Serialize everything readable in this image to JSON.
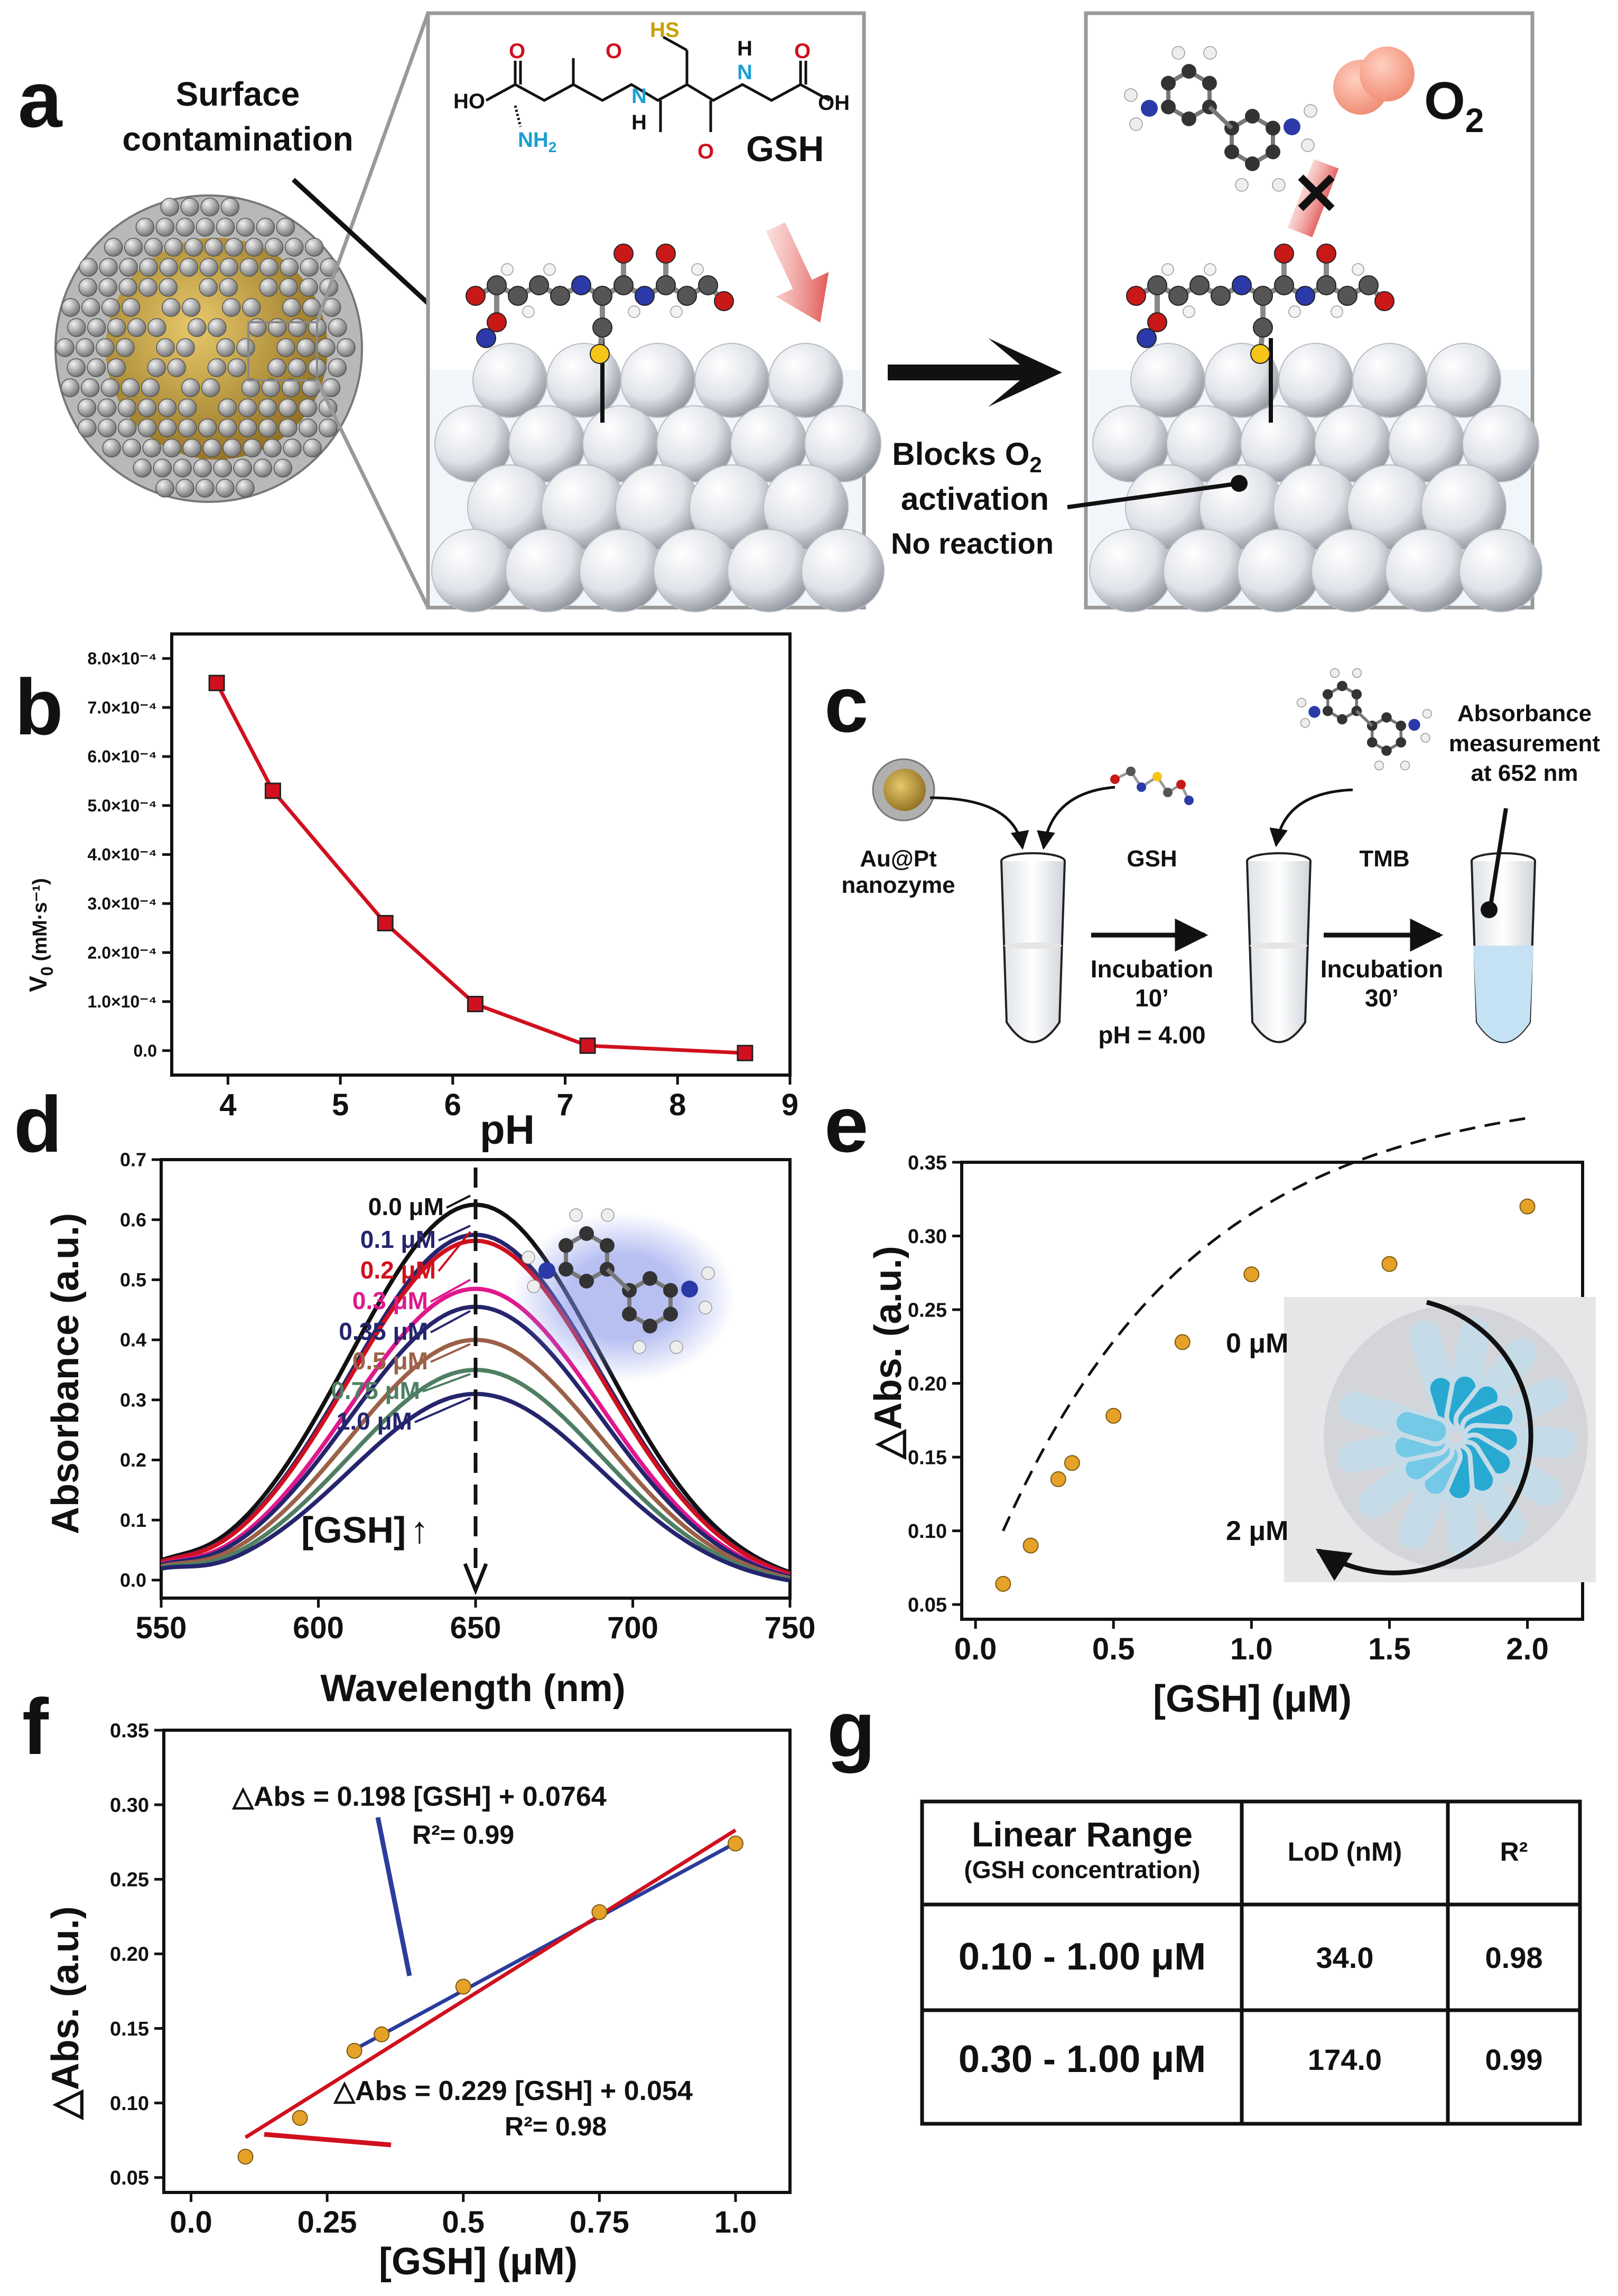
{
  "panel_letters": {
    "a": "a",
    "b": "b",
    "c": "c",
    "d": "d",
    "e": "e",
    "f": "f",
    "g": "g"
  },
  "colors": {
    "red": "#d0101e",
    "black": "#111111",
    "navy": "#25256e",
    "pink": "#e0188c",
    "brown": "#9b6148",
    "green": "#4f7f63",
    "gold": "#e6a128",
    "blue": "#2a3c9c"
  },
  "panel_a": {
    "surface_label_line1": "Surface",
    "surface_label_line2": "contamination",
    "gsh_label": "GSH",
    "atom_labels": {
      "hs": "HS",
      "ho": "HO",
      "o": "O",
      "oh": "OH",
      "nh2": "NH",
      "h": "H",
      "n": "N",
      "two": "2"
    },
    "o2_letter": "O",
    "o2_sub": "2",
    "blocks_line1_prefix": "Blocks O",
    "blocks_line1_sub": "2",
    "blocks_line2": "activation",
    "blocks_line3": "No reaction",
    "cross_mark": "✕"
  },
  "panel_b": {
    "ylabel_main": "V",
    "ylabel_sub": "0",
    "ylabel_unit": "(mM·s⁻¹)",
    "xlabel": "pH",
    "yticks": [
      "0.0",
      "1.0×10⁻⁴",
      "2.0×10⁻⁴",
      "3.0×10⁻⁴",
      "4.0×10⁻⁴",
      "5.0×10⁻⁴",
      "6.0×10⁻⁴",
      "7.0×10⁻⁴",
      "8.0×10⁻⁴"
    ],
    "xticks": [
      "4",
      "5",
      "6",
      "7",
      "8",
      "9"
    ]
  },
  "panel_c": {
    "nanozyme_line1": "Au@Pt",
    "nanozyme_line2": "nanozyme",
    "gsh": "GSH",
    "tmb": "TMB",
    "abs_line1": "Absorbance",
    "abs_line2": "measurement",
    "abs_line3": "at 652 nm",
    "incubation1_line1": "Incubation",
    "incubation1_line2": "10’",
    "ph_note": "pH = 4.00",
    "incubation2_line1": "Incubation",
    "incubation2_line2": "30’"
  },
  "panel_d": {
    "gsh_arrow_label": "[GSH]",
    "up_arrow": "↑"
  },
  "panel_e": {
    "inset_top": "0 μM",
    "inset_bottom": "2 μM"
  },
  "panel_f": {
    "eq1": "△Abs = 0.198 [GSH] + 0.0764",
    "r1": "R²= 0.99",
    "eq2": "△Abs = 0.229 [GSH] + 0.054",
    "r2": "R²= 0.98"
  },
  "panel_g": {
    "header": {
      "range_line1": "Linear Range",
      "range_line2": "(GSH concentration)",
      "lod": "LoD (nM)",
      "r2": "R²"
    },
    "rows": [
      {
        "range": "0.10 - 1.00 μM",
        "lod": "34.0",
        "r2": "0.98"
      },
      {
        "range": "0.30 - 1.00 μM",
        "lod": "174.0",
        "r2": "0.99"
      }
    ]
  },
  "chart_data": [
    {
      "panel": "b",
      "type": "line",
      "xlabel": "pH",
      "ylabel": "V0 (mM·s⁻¹)",
      "xlim": [
        3.5,
        9
      ],
      "ylim": [
        -5e-05,
        0.00085
      ],
      "x": [
        3.9,
        4.4,
        5.4,
        6.2,
        7.2,
        8.6
      ],
      "y": [
        0.00075,
        0.00053,
        0.00026,
        9.5e-05,
        1e-05,
        -5e-06
      ]
    },
    {
      "panel": "d",
      "type": "line",
      "xlabel": "Wavelength (nm)",
      "ylabel": "Absorbance (a.u.)",
      "xlim": [
        550,
        750
      ],
      "ylim": [
        -0.03,
        0.7
      ],
      "xticks": [
        "550",
        "600",
        "650",
        "700",
        "750"
      ],
      "yticks": [
        "0.0",
        "0.1",
        "0.2",
        "0.3",
        "0.4",
        "0.5",
        "0.6",
        "0.7"
      ],
      "peak_nm": 650,
      "width_nm": 40,
      "series": [
        {
          "name": "0.0 μM",
          "peak": 0.64,
          "color": "#111111"
        },
        {
          "name": "0.1 μM",
          "peak": 0.59,
          "color": "#25256e"
        },
        {
          "name": "0.2 μM",
          "peak": 0.58,
          "color": "#d0101e"
        },
        {
          "name": "0.3 μM",
          "peak": 0.5,
          "color": "#e0188c"
        },
        {
          "name": "0.35 μM",
          "peak": 0.47,
          "color": "#25256e"
        },
        {
          "name": "0.5 μM",
          "peak": 0.415,
          "color": "#9b6148"
        },
        {
          "name": "0.75 μM",
          "peak": 0.365,
          "color": "#4f7f63"
        },
        {
          "name": "1.0 μM",
          "peak": 0.325,
          "color": "#25256e"
        }
      ]
    },
    {
      "panel": "e",
      "type": "scatter",
      "xlabel": "[GSH] (μM)",
      "ylabel": "△Abs. (a.u.)",
      "xlim": [
        -0.05,
        2.2
      ],
      "ylim": [
        0.04,
        0.35
      ],
      "xticks": [
        "0.0",
        "0.5",
        "1.0",
        "1.5",
        "2.0"
      ],
      "yticks": [
        "0.05",
        "0.10",
        "0.15",
        "0.20",
        "0.25",
        "0.30",
        "0.35"
      ],
      "x": [
        0.1,
        0.2,
        0.3,
        0.35,
        0.5,
        0.75,
        1.0,
        1.5,
        2.0
      ],
      "y": [
        0.064,
        0.09,
        0.135,
        0.146,
        0.178,
        0.228,
        0.274,
        0.281,
        0.32
      ]
    },
    {
      "panel": "f",
      "type": "scatter",
      "xlabel": "[GSH] (μM)",
      "ylabel": "△Abs. (a.u.)",
      "xlim": [
        -0.05,
        1.1
      ],
      "ylim": [
        0.04,
        0.35
      ],
      "xticks": [
        "0.0",
        "0.25",
        "0.5",
        "0.75",
        "1.0"
      ],
      "yticks": [
        "0.05",
        "0.10",
        "0.15",
        "0.20",
        "0.25",
        "0.30",
        "0.35"
      ],
      "x": [
        0.1,
        0.2,
        0.3,
        0.35,
        0.5,
        0.75,
        1.0
      ],
      "y": [
        0.064,
        0.09,
        0.135,
        0.146,
        0.178,
        0.228,
        0.274
      ],
      "fits": [
        {
          "name": "fit 0.30-1.00",
          "slope": 0.198,
          "intercept": 0.0764,
          "x0": 0.3,
          "x1": 1.0,
          "color": "#2a3c9c"
        },
        {
          "name": "fit 0.10-1.00",
          "slope": 0.229,
          "intercept": 0.054,
          "x0": 0.1,
          "x1": 1.0,
          "color": "#d0101e"
        }
      ]
    }
  ]
}
